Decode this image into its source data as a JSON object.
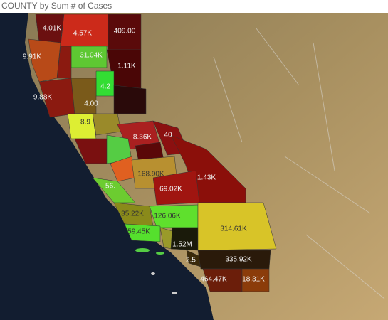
{
  "header": {
    "title": "COUNTY by Sum # of Cases"
  },
  "map": {
    "labels": [
      "4.01K",
      "4.57K",
      "409.00",
      "9.91K",
      "31.04K",
      "1.11K",
      "4.2",
      "9.88K",
      "4.00",
      "8.9",
      "8.36K",
      "40",
      "168.90K",
      "1.43K",
      "69.02K",
      "56.",
      "35.22K",
      "126.06K",
      "314.61K",
      "59.45K",
      "1.52M",
      "2.5",
      "335.92K",
      "464.47K",
      "18.31K"
    ]
  }
}
